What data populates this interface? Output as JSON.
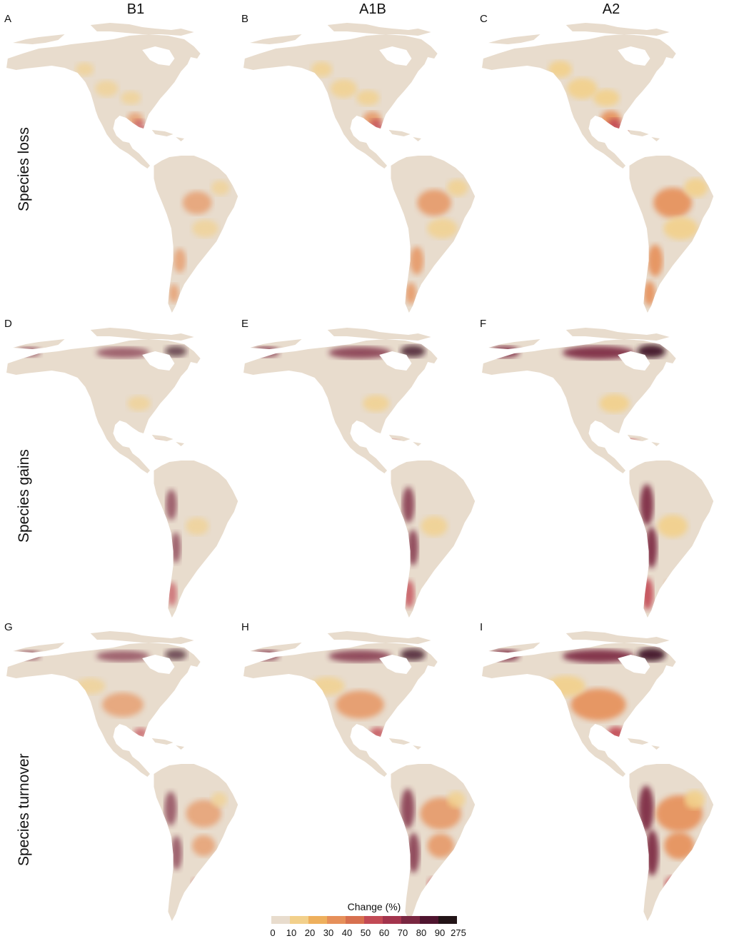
{
  "columns": [
    "B1",
    "A1B",
    "A2"
  ],
  "rows": [
    "Species loss",
    "Species gains",
    "Species turnover"
  ],
  "panels": [
    {
      "letter": "A",
      "row": "loss",
      "scenario": "B1",
      "level": 1
    },
    {
      "letter": "B",
      "row": "loss",
      "scenario": "A1B",
      "level": 2
    },
    {
      "letter": "C",
      "row": "loss",
      "scenario": "A2",
      "level": 3
    },
    {
      "letter": "D",
      "row": "gains",
      "scenario": "B1",
      "level": 1
    },
    {
      "letter": "E",
      "row": "gains",
      "scenario": "A1B",
      "level": 2
    },
    {
      "letter": "F",
      "row": "gains",
      "scenario": "A2",
      "level": 3
    },
    {
      "letter": "G",
      "row": "turnover",
      "scenario": "B1",
      "level": 1
    },
    {
      "letter": "H",
      "row": "turnover",
      "scenario": "A1B",
      "level": 2
    },
    {
      "letter": "I",
      "row": "turnover",
      "scenario": "A2",
      "level": 3
    }
  ],
  "legend": {
    "title": "Change (%)",
    "ticks": [
      "0",
      "10",
      "20",
      "30",
      "40",
      "50",
      "60",
      "70",
      "80",
      "90",
      "275"
    ],
    "colors": [
      "#e8dccd",
      "#f2d08b",
      "#eeb05d",
      "#e6905a",
      "#d7704f",
      "#c24a55",
      "#a3344d",
      "#7a2741",
      "#4f152f",
      "#231417"
    ]
  },
  "palette": {
    "base": "#e8dccd",
    "low": "#f2d08b",
    "mid": "#e6905a",
    "high": "#c24a55",
    "dark": "#7a2741",
    "darkest": "#3b1020"
  }
}
